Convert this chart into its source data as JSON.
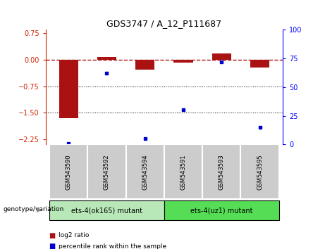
{
  "title": "GDS3747 / A_12_P111687",
  "categories": [
    "GSM543590",
    "GSM543592",
    "GSM543594",
    "GSM543591",
    "GSM543593",
    "GSM543595"
  ],
  "log2_ratios": [
    -1.65,
    0.08,
    -0.28,
    -0.07,
    0.18,
    -0.22
  ],
  "percentile_ranks": [
    1,
    62,
    5,
    30,
    72,
    15
  ],
  "bar_color": "#aa1111",
  "dot_color": "#0000cc",
  "ylim_left": [
    -2.4,
    0.85
  ],
  "ylim_right": [
    0,
    100
  ],
  "yticks_left": [
    0.75,
    0,
    -0.75,
    -1.5,
    -2.25
  ],
  "yticks_right": [
    100,
    75,
    50,
    25,
    0
  ],
  "dotted_lines": [
    -0.75,
    -1.5
  ],
  "group1_label": "ets-4(ok165) mutant",
  "group2_label": "ets-4(uz1) mutant",
  "group1_indices": [
    0,
    1,
    2
  ],
  "group2_indices": [
    3,
    4,
    5
  ],
  "genotype_label": "genotype/variation",
  "legend_bar_label": "log2 ratio",
  "legend_dot_label": "percentile rank within the sample",
  "group1_color": "#b8e8b8",
  "group2_color": "#55dd55",
  "tick_bg_color": "#cccccc",
  "bar_width": 0.5
}
